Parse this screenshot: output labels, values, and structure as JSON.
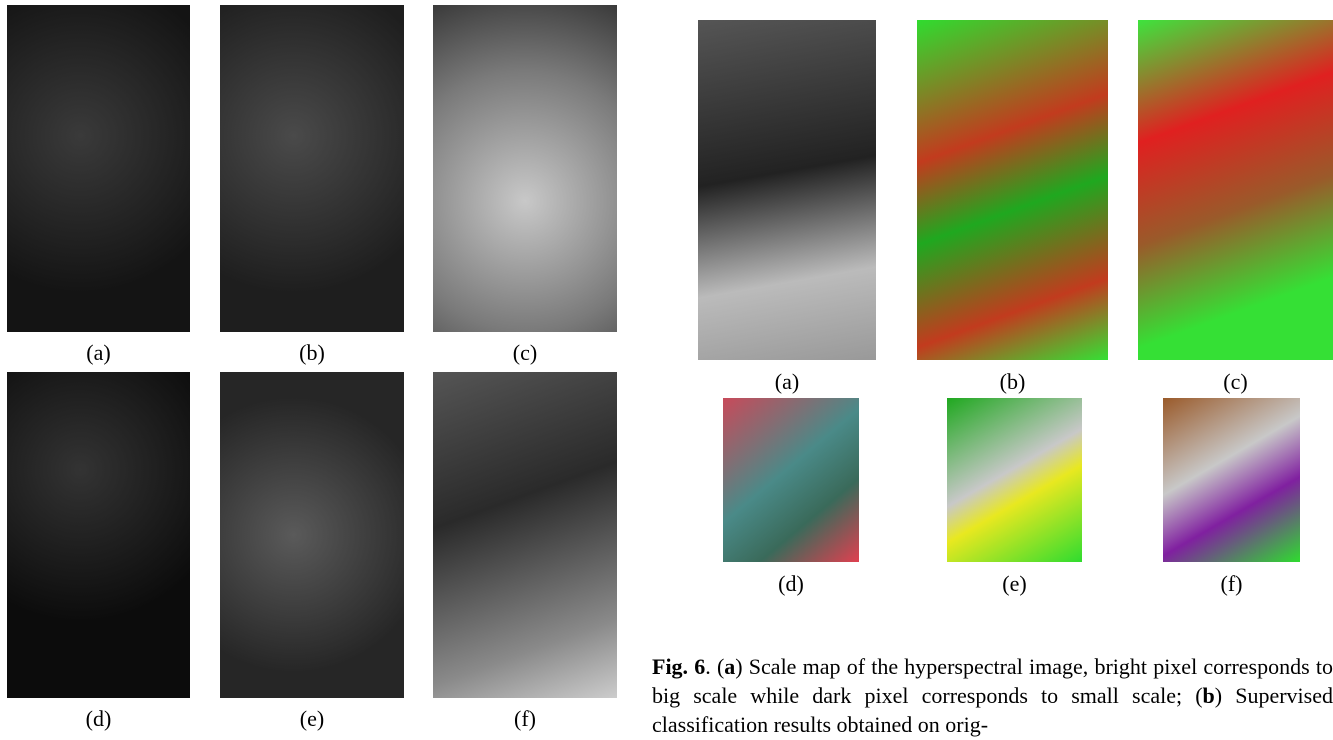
{
  "left_figure": {
    "labels": [
      "(a)",
      "(b)",
      "(c)",
      "(d)",
      "(e)",
      "(f)"
    ]
  },
  "right_figure": {
    "labels": [
      "(a)",
      "(b)",
      "(c)",
      "(d)",
      "(e)",
      "(f)"
    ]
  },
  "caption": {
    "segments": [
      {
        "text": "Fig. 6",
        "bold": true
      },
      {
        "text": ". ("
      },
      {
        "text": "a",
        "bold": true
      },
      {
        "text": ") Scale map of the hyperspectral image, bright pixel corresponds to big scale while dark pixel corresponds to small scale; ("
      },
      {
        "text": "b",
        "bold": true
      },
      {
        "text": ") Supervised classification results obtained on orig-"
      }
    ]
  }
}
